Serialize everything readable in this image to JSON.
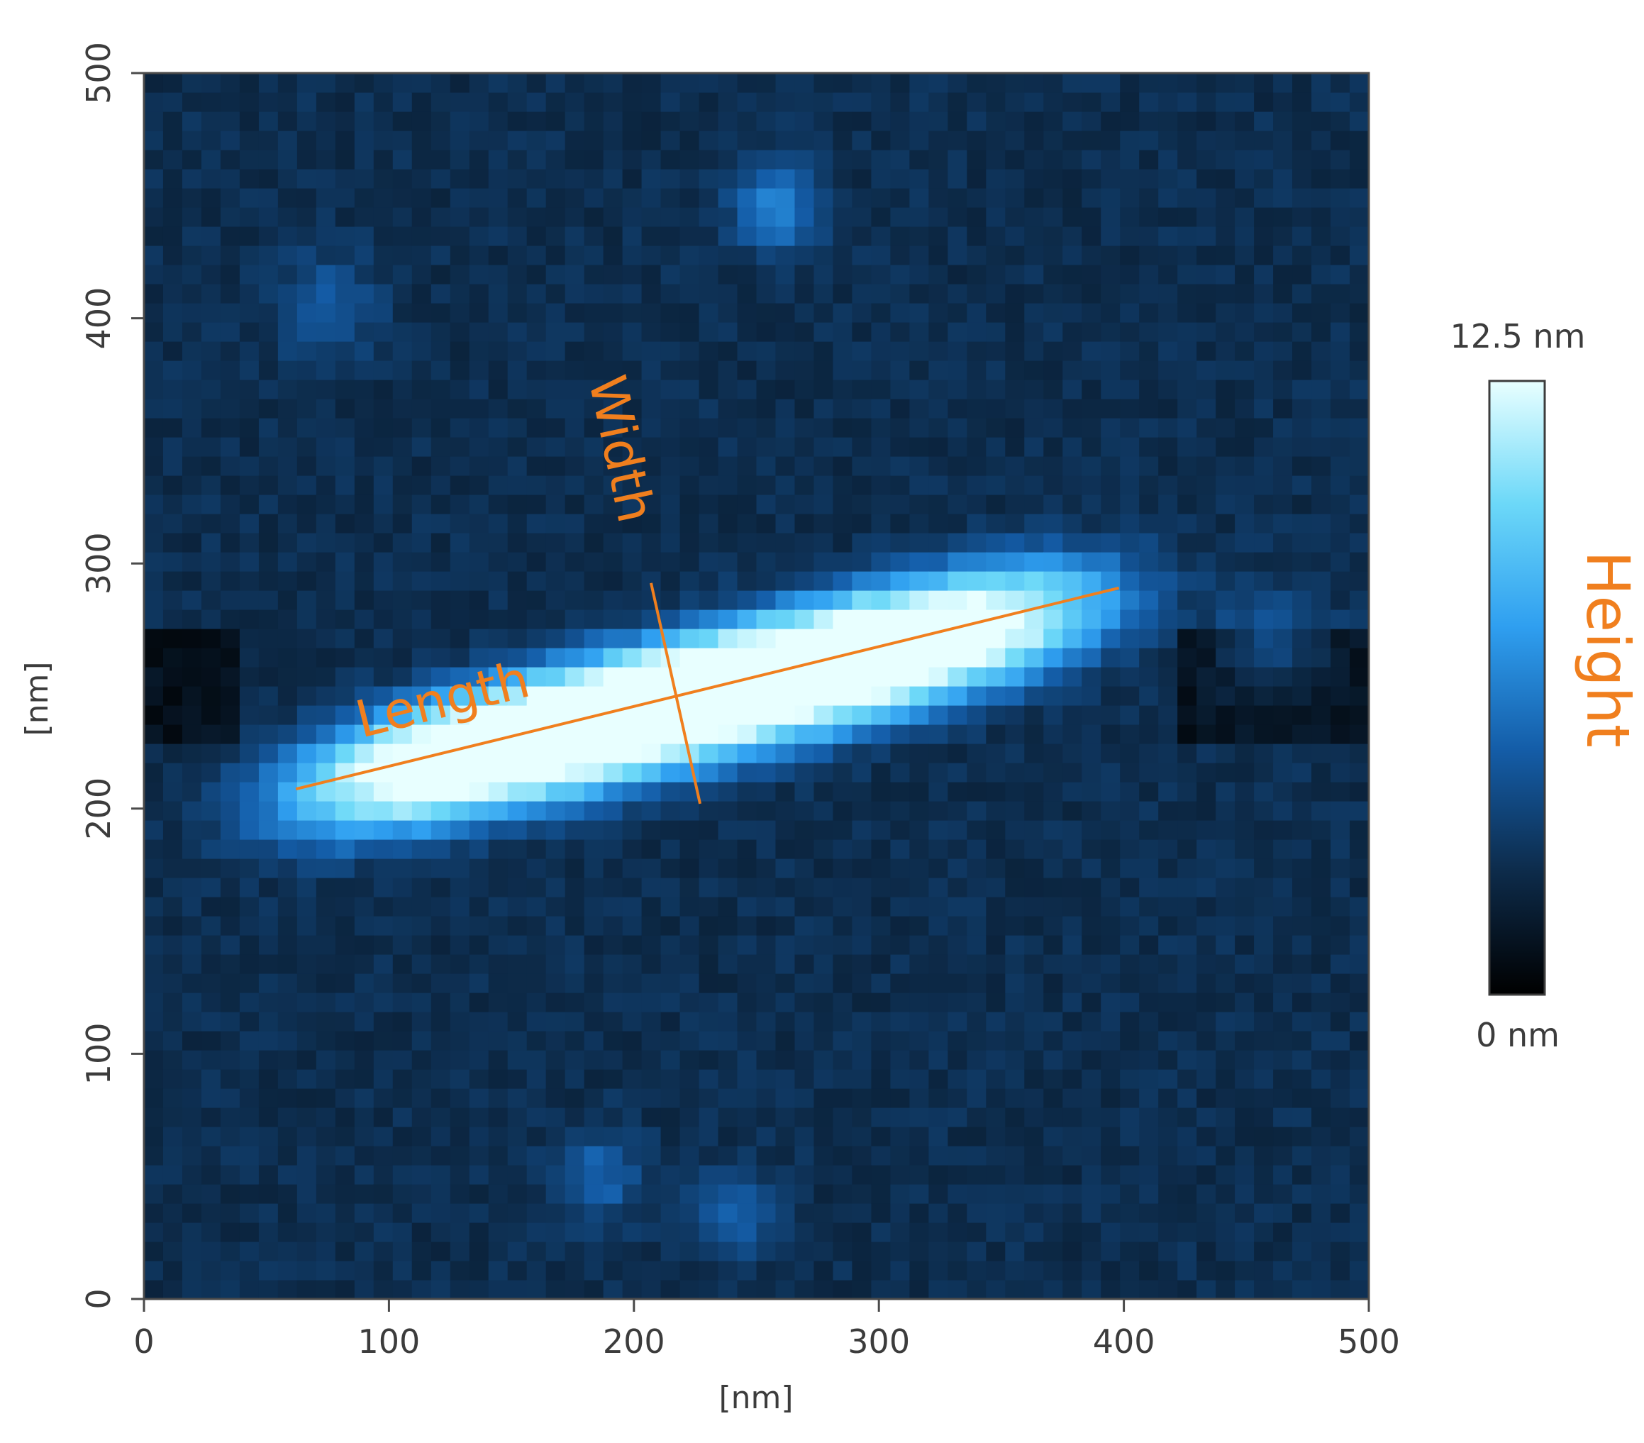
{
  "chart_data": {
    "type": "heatmap",
    "title": "",
    "xlabel": "[nm]",
    "ylabel": "[nm]",
    "xlim": [
      0,
      500
    ],
    "ylim": [
      0,
      500
    ],
    "x_ticks": [
      "0",
      "100",
      "200",
      "300",
      "400",
      "500"
    ],
    "y_ticks": [
      "0",
      "100",
      "200",
      "300",
      "400",
      "500"
    ],
    "colorbar": {
      "label": "Height",
      "max_label": "12.5 nm",
      "min_label": "0 nm",
      "range": [
        0,
        12.5
      ],
      "colors": [
        "#000000",
        "#0d2b4a",
        "#145da8",
        "#2f9ff0",
        "#6cd8f8",
        "#e8ffff"
      ]
    },
    "annotations": [
      {
        "name": "length",
        "label": "Length",
        "from": [
          62,
          208
        ],
        "to": [
          398,
          290
        ],
        "color": "#f07f1e"
      },
      {
        "name": "width",
        "label": "Width",
        "from": [
          207,
          292
        ],
        "to": [
          227,
          202
        ],
        "color": "#f07f1e"
      }
    ],
    "features": [
      {
        "name": "main-particle",
        "center": [
          225,
          245
        ],
        "length": 360,
        "width": 60,
        "angle_deg": 14,
        "peak_height": 12.5
      },
      {
        "name": "small-particle-top",
        "center": [
          258,
          445
        ],
        "radius": 22,
        "peak_height": 6.5
      },
      {
        "name": "small-particle-upper-left",
        "center": [
          75,
          405
        ],
        "radius": 25,
        "peak_height": 4.0
      },
      {
        "name": "small-particle-right",
        "center": [
          460,
          265
        ],
        "radius": 28,
        "peak_height": 4.5
      },
      {
        "name": "small-particle-bottom",
        "center": [
          185,
          50
        ],
        "radius": 22,
        "peak_height": 4.5
      },
      {
        "name": "small-particle-bottom-2",
        "center": [
          240,
          35
        ],
        "radius": 22,
        "peak_height": 4.0
      }
    ]
  }
}
